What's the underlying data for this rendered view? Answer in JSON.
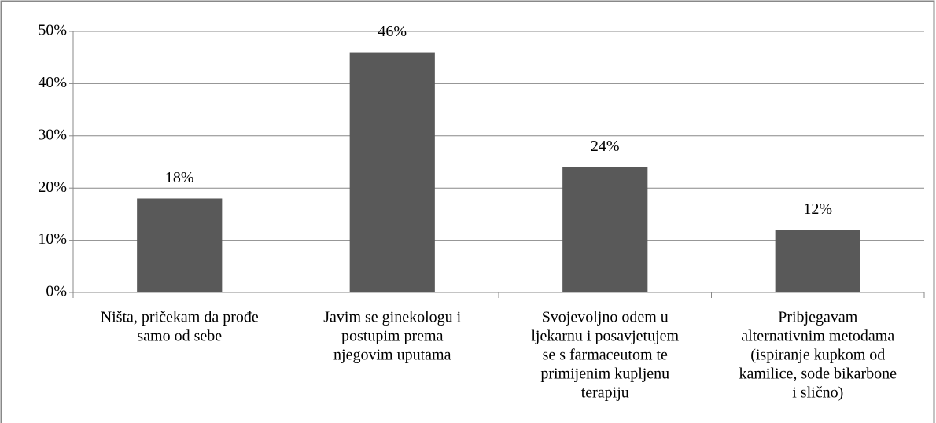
{
  "chart_data": {
    "type": "bar",
    "categories": [
      [
        "Ništa, pričekam da prođe",
        "samo od sebe"
      ],
      [
        "Javim se ginekologu i",
        "postupim prema",
        "njegovim uputama"
      ],
      [
        "Svojevoljno odem u",
        "ljekarnu i posavjetujem",
        "se s farmaceutom te",
        "primijenim kupljenu",
        "terapiju"
      ],
      [
        "Pribjegavam",
        "alternativnim metodama",
        "(ispiranje kupkom od",
        "kamilice, sode bikarbone",
        "i slično)"
      ]
    ],
    "values": [
      18,
      46,
      24,
      12
    ],
    "value_labels": [
      "18%",
      "46%",
      "24%",
      "12%"
    ],
    "color": "#595959",
    "ylim": [
      0,
      50
    ],
    "yticks": [
      {
        "value": 0,
        "label": "0%"
      },
      {
        "value": 10,
        "label": "10%"
      },
      {
        "value": 20,
        "label": "20%"
      },
      {
        "value": 30,
        "label": "30%"
      },
      {
        "value": 40,
        "label": "40%"
      },
      {
        "value": 50,
        "label": "50%"
      }
    ],
    "grid": true
  }
}
